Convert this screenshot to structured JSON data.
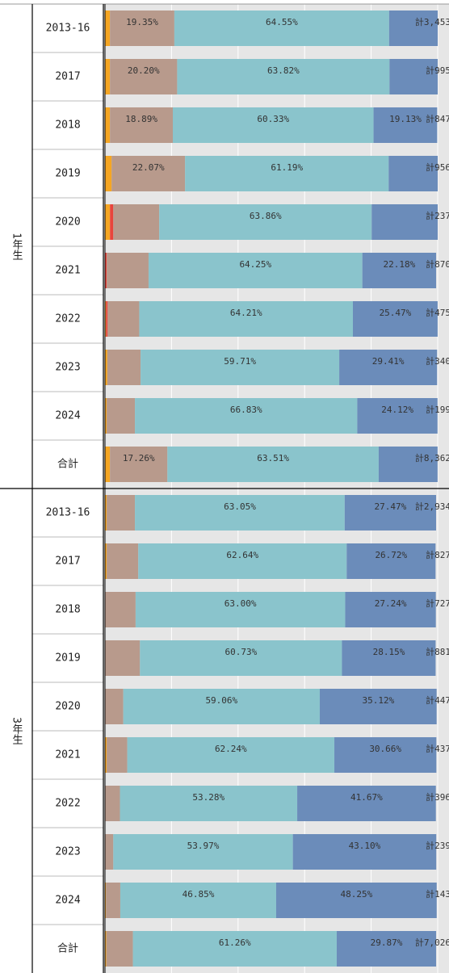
{
  "chart_data": {
    "type": "stacked-bar",
    "orientation": "horizontal",
    "xlim": [
      0,
      100
    ],
    "xticks": [
      0,
      20,
      40,
      60,
      80,
      100
    ],
    "grid": true,
    "groups": [
      {
        "name": "1年生",
        "categories": [
          "2013-16",
          "2017",
          "2018",
          "2019",
          "2020",
          "2021",
          "2022",
          "2023",
          "2024",
          "合計"
        ],
        "total_labels": [
          "計3,453",
          "計995",
          "計847",
          "計956",
          "計237",
          "計870",
          "計475",
          "計340",
          "計199",
          "計8,362"
        ],
        "series": [
          {
            "color": "#f5a623",
            "values": [
              1.5,
              1.5,
              1.5,
              2.0,
              1.5,
              0,
              0.3,
              0.7,
              0.5,
              1.5
            ]
          },
          {
            "color": "#e8453c",
            "values": [
              0,
              0,
              0,
              0,
              1.0,
              0.5,
              0.5,
              0,
              0,
              0
            ]
          },
          {
            "color": "#b89a8c",
            "values": [
              19.35,
              20.2,
              18.89,
              22.07,
              13.8,
              12.6,
              9.5,
              10,
              8.5,
              17.26
            ],
            "value_labels": [
              "19.35%",
              "20.20%",
              "18.89%",
              "22.07%",
              null,
              null,
              null,
              null,
              null,
              "17.26%"
            ]
          },
          {
            "color": "#8ac4cc",
            "values": [
              64.55,
              63.82,
              60.33,
              61.19,
              63.86,
              64.25,
              64.21,
              59.71,
              66.83,
              63.51
            ],
            "value_labels": [
              "64.55%",
              "63.82%",
              "60.33%",
              "61.19%",
              "63.86%",
              "64.25%",
              "64.21%",
              "59.71%",
              "66.83%",
              "63.51%"
            ]
          },
          {
            "color": "#6b8cba",
            "values": [
              14.6,
              14.48,
              19.13,
              14.74,
              19.84,
              22.18,
              25.47,
              29.41,
              24.12,
              17.7
            ],
            "value_labels": [
              null,
              null,
              "19.13%",
              null,
              null,
              "22.18%",
              "25.47%",
              "29.41%",
              "24.12%",
              null
            ]
          }
        ]
      },
      {
        "name": "3年生",
        "categories": [
          "2013-16",
          "2017",
          "2018",
          "2019",
          "2020",
          "2021",
          "2022",
          "2023",
          "2024",
          "合計"
        ],
        "total_labels": [
          "計2,934",
          "計827",
          "計727",
          "計881",
          "計447",
          "計437",
          "計396",
          "計239",
          "計143",
          "計7,026"
        ],
        "series": [
          {
            "color": "#f5a623",
            "values": [
              0.5,
              0.5,
              0,
              0,
              0,
              0.5,
              0,
              0,
              0.3,
              0.4
            ]
          },
          {
            "color": "#e8453c",
            "values": [
              0,
              0,
              0,
              0,
              0,
              0,
              0,
              0,
              0,
              0
            ]
          },
          {
            "color": "#b89a8c",
            "values": [
              8.5,
              9.5,
              9.2,
              10.5,
              5.5,
              6.2,
              4.5,
              2.5,
              4.3,
              8
            ]
          },
          {
            "color": "#8ac4cc",
            "values": [
              63.05,
              62.64,
              63.0,
              60.73,
              59.06,
              62.24,
              53.28,
              53.97,
              46.85,
              61.26
            ],
            "value_labels": [
              "63.05%",
              "62.64%",
              "63.00%",
              "60.73%",
              "59.06%",
              "62.24%",
              "53.28%",
              "53.97%",
              "46.85%",
              "61.26%"
            ]
          },
          {
            "color": "#6b8cba",
            "values": [
              27.47,
              26.72,
              27.24,
              28.15,
              35.12,
              30.66,
              41.67,
              43.1,
              48.25,
              29.87
            ],
            "value_labels": [
              "27.47%",
              "26.72%",
              "27.24%",
              "28.15%",
              "35.12%",
              "30.66%",
              "41.67%",
              "43.10%",
              "48.25%",
              "29.87%"
            ]
          }
        ]
      }
    ]
  }
}
